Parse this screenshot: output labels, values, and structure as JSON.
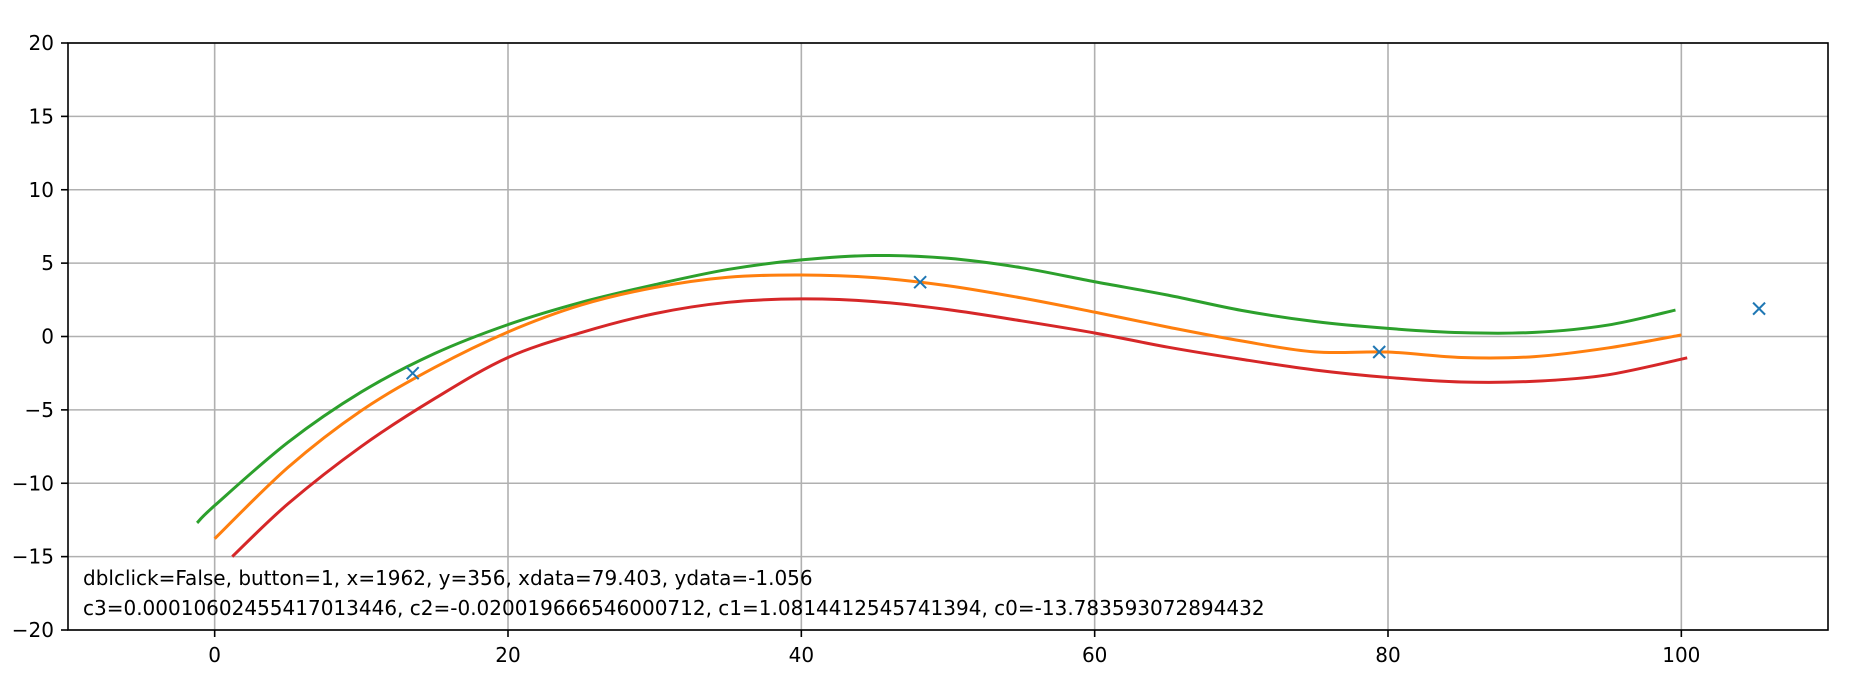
{
  "chart_data": {
    "type": "line",
    "title": "",
    "xlabel": "",
    "ylabel": "",
    "xlim": [
      -10,
      110
    ],
    "ylim": [
      -20,
      20
    ],
    "grid": true,
    "x_ticks": [
      0,
      20,
      40,
      60,
      80,
      100
    ],
    "x_tick_labels": [
      "0",
      "20",
      "40",
      "60",
      "80",
      "100"
    ],
    "y_ticks": [
      -20,
      -15,
      -10,
      -5,
      0,
      5,
      10,
      15,
      20
    ],
    "y_tick_labels": [
      "−20",
      "−15",
      "−10",
      "−5",
      "0",
      "5",
      "10",
      "15",
      "20"
    ],
    "markers": {
      "symbol": "x",
      "color": "#1f77b4",
      "points": [
        {
          "x": 13.5,
          "y": -2.5
        },
        {
          "x": 48.1,
          "y": 3.7
        },
        {
          "x": 79.4,
          "y": -1.056
        },
        {
          "x": 105.3,
          "y": 1.9
        }
      ]
    },
    "series": [
      {
        "color": "#2ca02c",
        "x": [
          -1.2,
          0,
          5,
          10,
          15,
          20,
          25,
          30,
          35,
          40,
          45,
          50,
          55,
          60,
          65,
          70,
          75,
          80,
          85,
          90,
          95,
          99.6
        ],
        "y": [
          -12.7,
          -11.52,
          -7.21,
          -3.78,
          -1.16,
          0.81,
          2.33,
          3.53,
          4.57,
          5.22,
          5.52,
          5.33,
          4.69,
          3.73,
          2.82,
          1.78,
          1.02,
          0.55,
          0.26,
          0.28,
          0.78,
          1.8
        ]
      },
      {
        "color": "#ff7f0e",
        "x": [
          0,
          5,
          10,
          15,
          20,
          25,
          30,
          35,
          40,
          45,
          50,
          55,
          60,
          65,
          70,
          75,
          80,
          85,
          90,
          95,
          100
        ],
        "y": [
          -13.78,
          -8.92,
          -5.05,
          -2.11,
          0.31,
          2.15,
          3.34,
          4.04,
          4.19,
          4.01,
          3.46,
          2.63,
          1.66,
          0.64,
          -0.3,
          -1.05,
          -1.06,
          -1.43,
          -1.37,
          -0.78,
          0.1
        ]
      },
      {
        "color": "#d62728",
        "x": [
          1.2,
          5,
          10,
          15,
          20,
          25,
          30,
          35,
          40,
          45,
          50,
          55,
          60,
          65,
          70,
          75,
          80,
          85,
          90,
          95,
          100.4
        ],
        "y": [
          -15.0,
          -11.4,
          -7.49,
          -4.23,
          -1.43,
          0.27,
          1.56,
          2.33,
          2.56,
          2.38,
          1.83,
          1.07,
          0.24,
          -0.73,
          -1.55,
          -2.28,
          -2.79,
          -3.1,
          -3.05,
          -2.61,
          -1.45
        ]
      }
    ],
    "annotation": {
      "line1": "dblclick=False, button=1, x=1962, y=356, xdata=79.403, ydata=-1.056",
      "line2": "c3=0.00010602455417013446, c2=-0.020019666546000712, c1=1.0814412545741394, c0=-13.783593072894432"
    }
  }
}
